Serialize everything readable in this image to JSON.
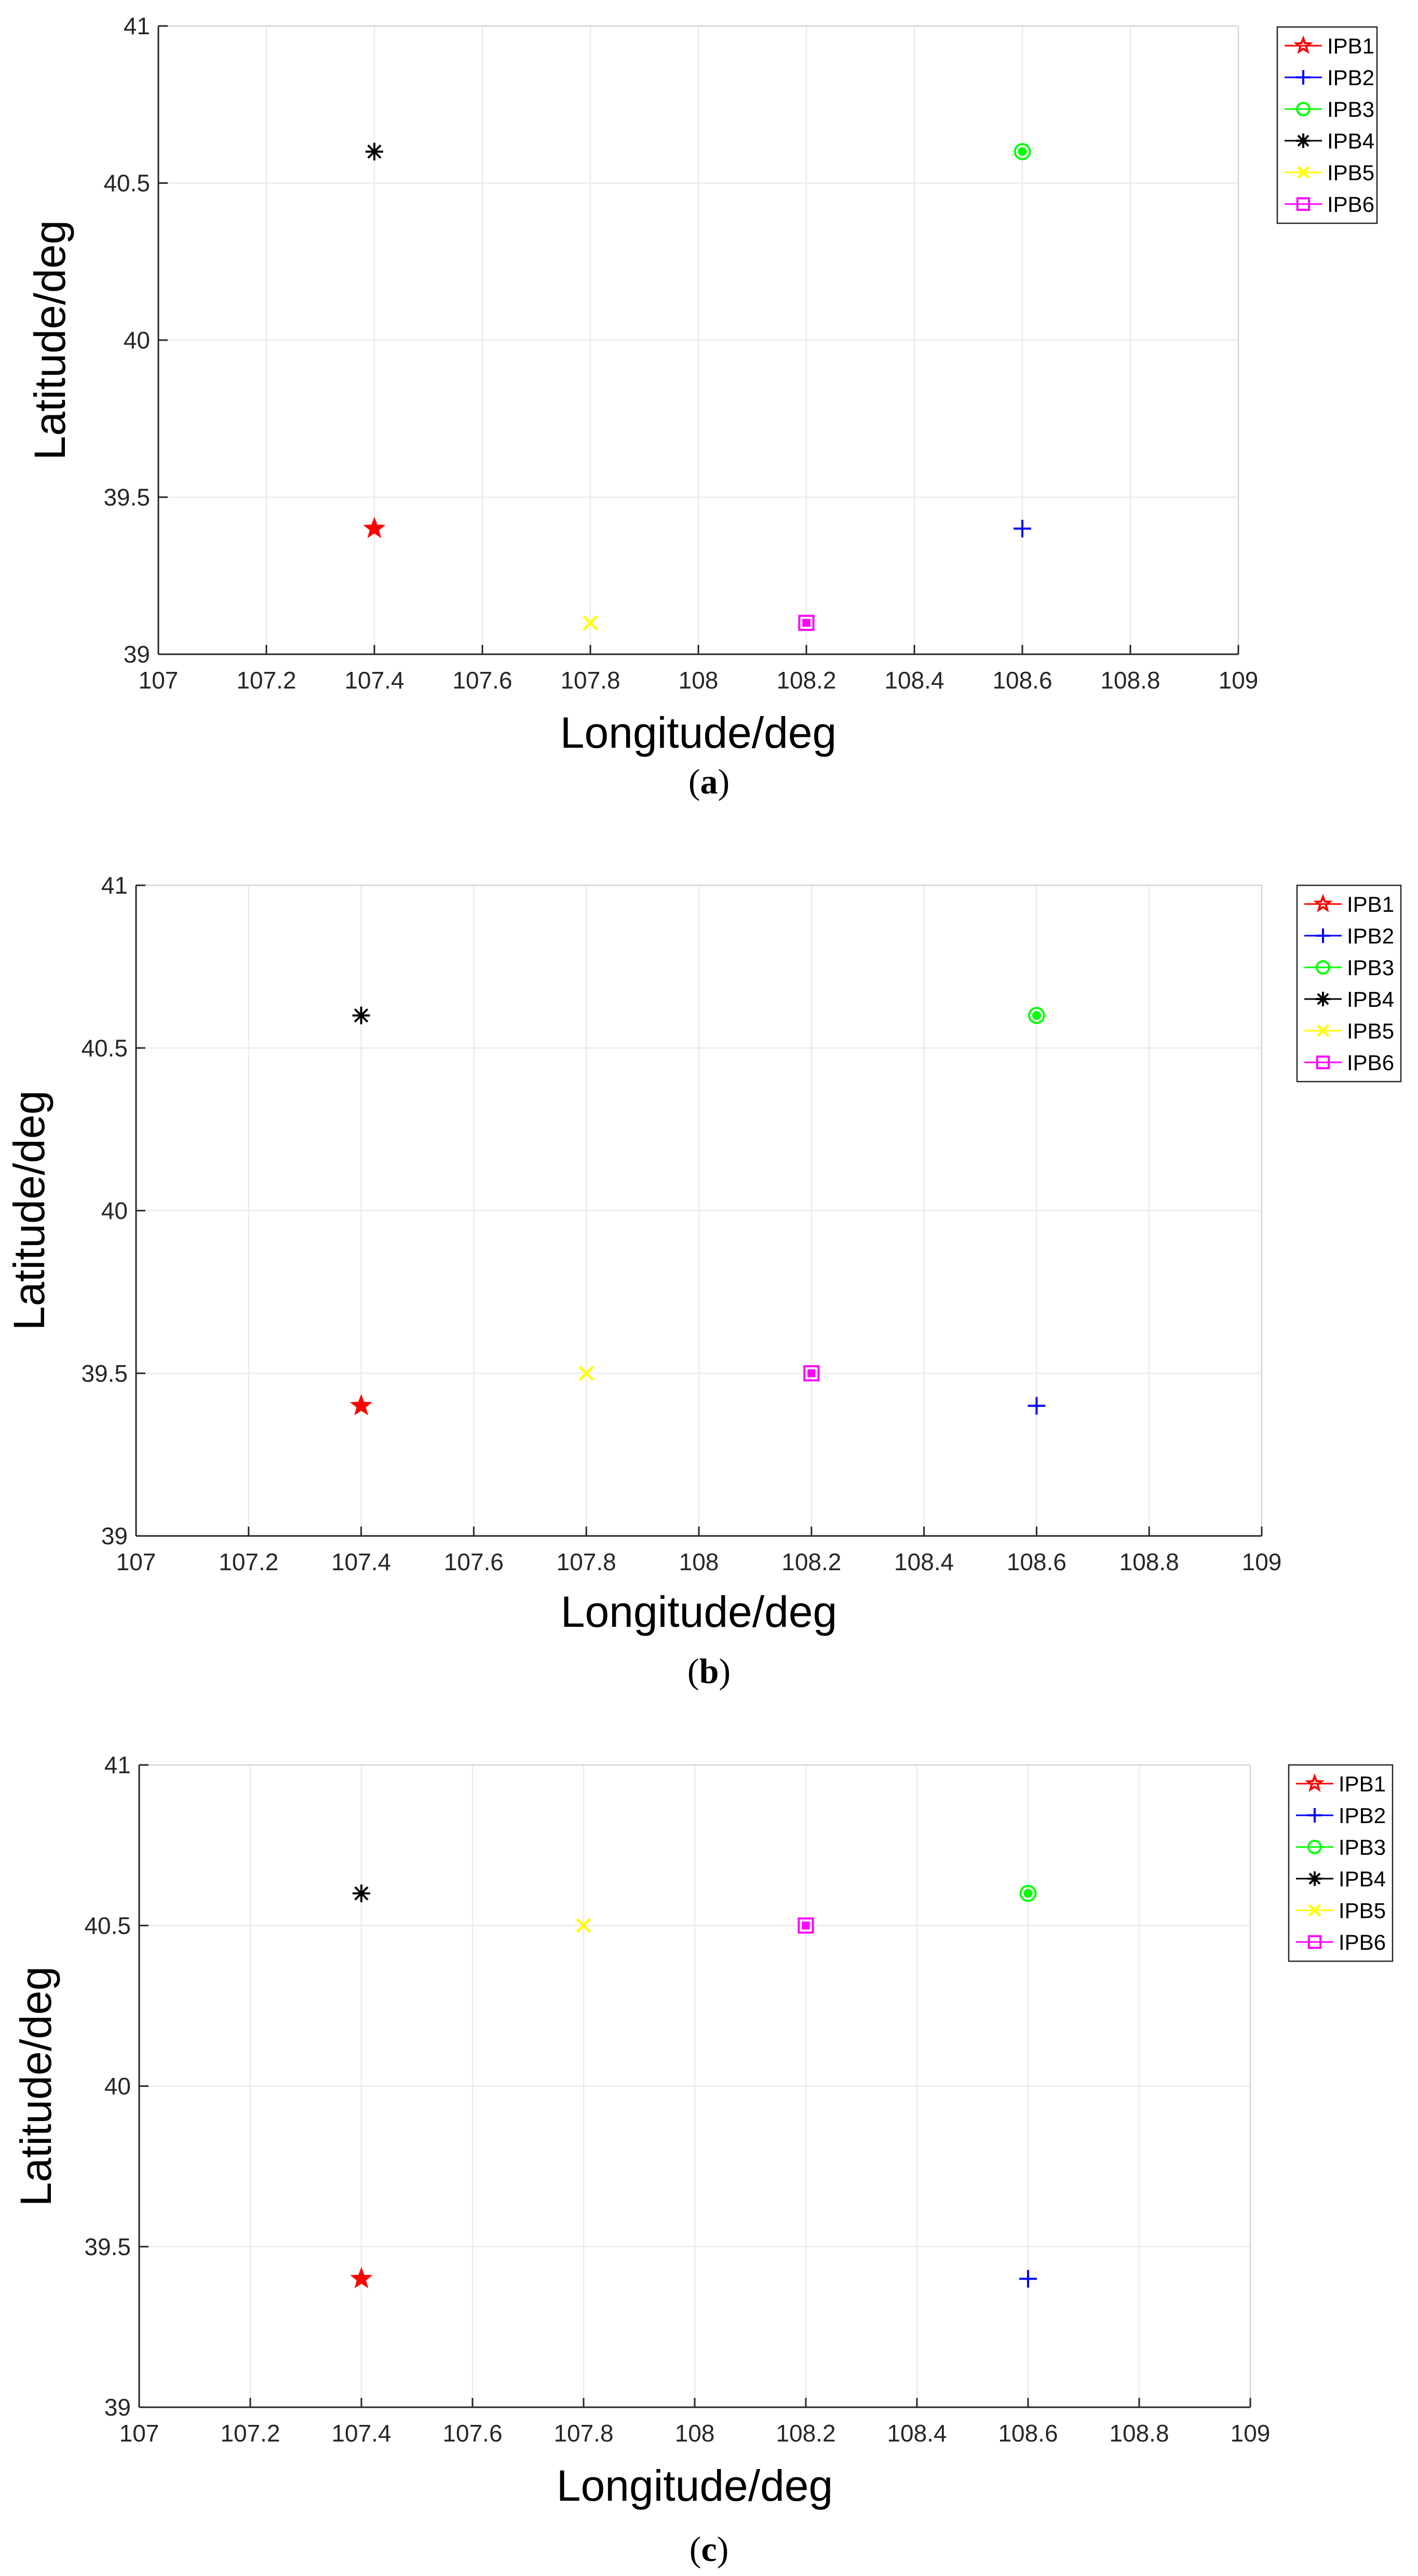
{
  "chart_data": [
    {
      "type": "scatter",
      "panel": "a",
      "xlabel": "Longitude/deg",
      "ylabel": "Latitude/deg",
      "xlim": [
        107,
        109
      ],
      "ylim": [
        39,
        41
      ],
      "xticks": [
        "107",
        "107.2",
        "107.4",
        "107.6",
        "107.8",
        "108",
        "108.2",
        "108.4",
        "108.6",
        "108.8",
        "109"
      ],
      "yticks": [
        "39",
        "39.5",
        "40",
        "40.5",
        "41"
      ],
      "grid": true,
      "legend_position": "top-right",
      "series": [
        {
          "name": "IPB1",
          "color": "#ff0000",
          "marker": "pentagram",
          "x": 107.4,
          "y": 39.4
        },
        {
          "name": "IPB2",
          "color": "#0000ff",
          "marker": "plus",
          "x": 108.6,
          "y": 39.4
        },
        {
          "name": "IPB3",
          "color": "#00ff00",
          "marker": "circle",
          "x": 108.6,
          "y": 40.6
        },
        {
          "name": "IPB4",
          "color": "#000000",
          "marker": "asterisk",
          "x": 107.4,
          "y": 40.6
        },
        {
          "name": "IPB5",
          "color": "#ffff00",
          "marker": "x",
          "x": 107.8,
          "y": 39.1
        },
        {
          "name": "IPB6",
          "color": "#ff00ff",
          "marker": "square",
          "x": 108.2,
          "y": 39.1
        }
      ]
    },
    {
      "type": "scatter",
      "panel": "b",
      "xlabel": "Longitude/deg",
      "ylabel": "Latitude/deg",
      "xlim": [
        107,
        109
      ],
      "ylim": [
        39,
        41
      ],
      "xticks": [
        "107",
        "107.2",
        "107.4",
        "107.6",
        "107.8",
        "108",
        "108.2",
        "108.4",
        "108.6",
        "108.8",
        "109"
      ],
      "yticks": [
        "39",
        "39.5",
        "40",
        "40.5",
        "41"
      ],
      "grid": true,
      "legend_position": "top-right",
      "series": [
        {
          "name": "IPB1",
          "color": "#ff0000",
          "marker": "pentagram",
          "x": 107.4,
          "y": 39.4
        },
        {
          "name": "IPB2",
          "color": "#0000ff",
          "marker": "plus",
          "x": 108.6,
          "y": 39.4
        },
        {
          "name": "IPB3",
          "color": "#00ff00",
          "marker": "circle",
          "x": 108.6,
          "y": 40.6
        },
        {
          "name": "IPB4",
          "color": "#000000",
          "marker": "asterisk",
          "x": 107.4,
          "y": 40.6
        },
        {
          "name": "IPB5",
          "color": "#ffff00",
          "marker": "x",
          "x": 107.8,
          "y": 39.5
        },
        {
          "name": "IPB6",
          "color": "#ff00ff",
          "marker": "square",
          "x": 108.2,
          "y": 39.5
        }
      ]
    },
    {
      "type": "scatter",
      "panel": "c",
      "xlabel": "Longitude/deg",
      "ylabel": "Latitude/deg",
      "xlim": [
        107,
        109
      ],
      "ylim": [
        39,
        41
      ],
      "xticks": [
        "107",
        "107.2",
        "107.4",
        "107.6",
        "107.8",
        "108",
        "108.2",
        "108.4",
        "108.6",
        "108.8",
        "109"
      ],
      "yticks": [
        "39",
        "39.5",
        "40",
        "40.5",
        "41"
      ],
      "grid": true,
      "legend_position": "top-right",
      "series": [
        {
          "name": "IPB1",
          "color": "#ff0000",
          "marker": "pentagram",
          "x": 107.4,
          "y": 39.4
        },
        {
          "name": "IPB2",
          "color": "#0000ff",
          "marker": "plus",
          "x": 108.6,
          "y": 39.4
        },
        {
          "name": "IPB3",
          "color": "#00ff00",
          "marker": "circle",
          "x": 108.6,
          "y": 40.6
        },
        {
          "name": "IPB4",
          "color": "#000000",
          "marker": "asterisk",
          "x": 107.4,
          "y": 40.6
        },
        {
          "name": "IPB5",
          "color": "#ffff00",
          "marker": "x",
          "x": 107.8,
          "y": 40.5
        },
        {
          "name": "IPB6",
          "color": "#ff00ff",
          "marker": "square",
          "x": 108.2,
          "y": 40.5
        }
      ]
    }
  ],
  "captions": [
    {
      "open": "(",
      "letter": "a",
      "close": ")"
    },
    {
      "open": "(",
      "letter": "b",
      "close": ")"
    },
    {
      "open": "(",
      "letter": "c",
      "close": ")"
    }
  ],
  "colors": {
    "axis": "#262626",
    "grid": "#ebebeb",
    "background": "#ffffff"
  }
}
